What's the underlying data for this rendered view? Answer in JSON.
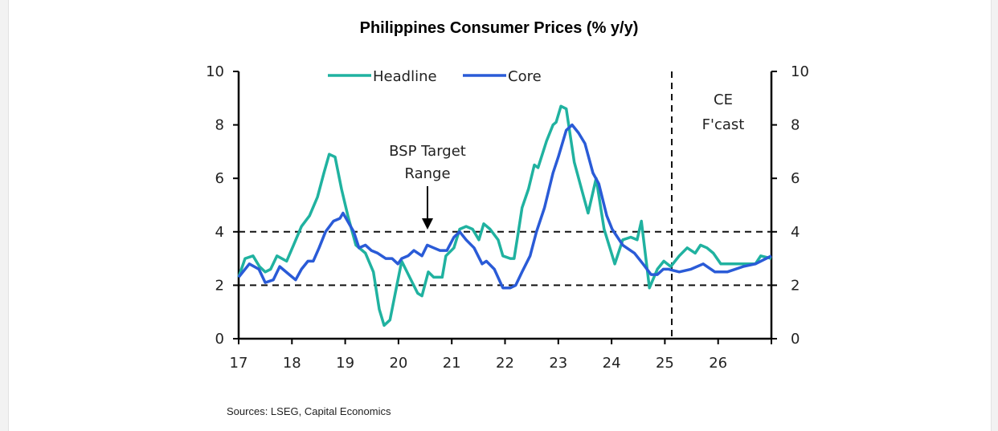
{
  "chart_data": {
    "type": "line",
    "title": "Philippines Consumer Prices (% y/y)",
    "source": "Sources: LSEG, Capital Economics",
    "xlim": [
      17,
      27
    ],
    "ylim": [
      0,
      10
    ],
    "x_ticks": [
      "17",
      "18",
      "19",
      "20",
      "21",
      "22",
      "23",
      "24",
      "25",
      "26"
    ],
    "y_ticks": [
      "0",
      "2",
      "4",
      "6",
      "8",
      "10"
    ],
    "legend_position": "top-center",
    "grid": false,
    "reference_lines": [
      {
        "axis": "y",
        "value": 2,
        "style": "dashed"
      },
      {
        "axis": "y",
        "value": 4,
        "style": "dashed"
      },
      {
        "axis": "x",
        "value": 25.13,
        "style": "dashed"
      }
    ],
    "annotations": {
      "target": [
        "BSP Target",
        "Range"
      ],
      "forecast": [
        "CE",
        "F'cast"
      ]
    },
    "series": [
      {
        "name": "Headline",
        "color": "#20b2a0",
        "x": [
          17.0,
          17.12,
          17.27,
          17.39,
          17.5,
          17.6,
          17.72,
          17.9,
          18.03,
          18.18,
          18.33,
          18.48,
          18.6,
          18.7,
          18.81,
          18.93,
          19.05,
          19.2,
          19.38,
          19.53,
          19.64,
          19.73,
          19.84,
          19.94,
          20.06,
          20.21,
          20.36,
          20.44,
          20.56,
          20.66,
          20.82,
          20.89,
          21.04,
          21.15,
          21.27,
          21.39,
          21.51,
          21.6,
          21.72,
          21.87,
          21.96,
          22.1,
          22.17,
          22.25,
          22.32,
          22.44,
          22.55,
          22.62,
          22.78,
          22.9,
          22.96,
          23.05,
          23.15,
          23.3,
          23.45,
          23.56,
          23.71,
          23.86,
          24.06,
          24.21,
          24.36,
          24.48,
          24.56,
          24.71,
          24.86,
          24.98,
          25.11,
          25.27,
          25.42,
          25.57,
          25.67,
          25.79,
          25.91,
          26.05,
          26.7,
          26.8,
          27.0
        ],
        "y": [
          2.3,
          3.0,
          3.1,
          2.7,
          2.5,
          2.6,
          3.1,
          2.9,
          3.5,
          4.2,
          4.6,
          5.3,
          6.2,
          6.9,
          6.8,
          5.6,
          4.6,
          3.5,
          3.2,
          2.5,
          1.1,
          0.5,
          0.7,
          1.7,
          2.9,
          2.3,
          1.7,
          1.6,
          2.5,
          2.3,
          2.3,
          3.1,
          3.4,
          4.1,
          4.2,
          4.1,
          3.7,
          4.3,
          4.1,
          3.7,
          3.1,
          3.0,
          3.0,
          4.0,
          4.9,
          5.6,
          6.5,
          6.4,
          7.4,
          8.0,
          8.1,
          8.7,
          8.6,
          6.6,
          5.5,
          4.7,
          6.0,
          4.1,
          2.8,
          3.7,
          3.8,
          3.7,
          4.4,
          1.9,
          2.6,
          2.9,
          2.7,
          3.1,
          3.4,
          3.2,
          3.5,
          3.4,
          3.2,
          2.8,
          2.8,
          3.1,
          3.0
        ]
      },
      {
        "name": "Core",
        "color": "#2a5bd7",
        "x": [
          17.0,
          17.2,
          17.38,
          17.5,
          17.65,
          17.77,
          17.95,
          18.07,
          18.18,
          18.3,
          18.4,
          18.51,
          18.63,
          18.78,
          18.9,
          18.96,
          19.16,
          19.26,
          19.38,
          19.49,
          19.61,
          19.76,
          19.88,
          19.99,
          20.06,
          20.18,
          20.29,
          20.44,
          20.54,
          20.66,
          20.78,
          20.91,
          21.04,
          21.15,
          21.27,
          21.42,
          21.57,
          21.65,
          21.8,
          21.96,
          22.1,
          22.2,
          22.32,
          22.47,
          22.59,
          22.74,
          22.9,
          23.0,
          23.15,
          23.26,
          23.38,
          23.5,
          23.65,
          23.76,
          23.91,
          24.01,
          24.21,
          24.43,
          24.59,
          24.74,
          24.86,
          24.97,
          25.07,
          25.27,
          25.49,
          25.72,
          25.94,
          26.17,
          26.47,
          26.7,
          27.0
        ],
        "y": [
          2.3,
          2.8,
          2.6,
          2.1,
          2.2,
          2.7,
          2.4,
          2.2,
          2.6,
          2.9,
          2.9,
          3.4,
          4.0,
          4.4,
          4.5,
          4.7,
          4.0,
          3.4,
          3.5,
          3.3,
          3.2,
          3.0,
          3.0,
          2.8,
          3.0,
          3.1,
          3.3,
          3.1,
          3.5,
          3.4,
          3.3,
          3.3,
          3.8,
          4.0,
          3.7,
          3.4,
          2.8,
          2.9,
          2.6,
          1.9,
          1.9,
          2.0,
          2.5,
          3.1,
          4.0,
          4.9,
          6.2,
          6.8,
          7.8,
          8.0,
          7.7,
          7.3,
          6.2,
          5.8,
          4.6,
          4.1,
          3.5,
          3.2,
          2.8,
          2.4,
          2.4,
          2.6,
          2.6,
          2.5,
          2.6,
          2.8,
          2.5,
          2.5,
          2.7,
          2.8,
          3.1
        ]
      }
    ]
  }
}
